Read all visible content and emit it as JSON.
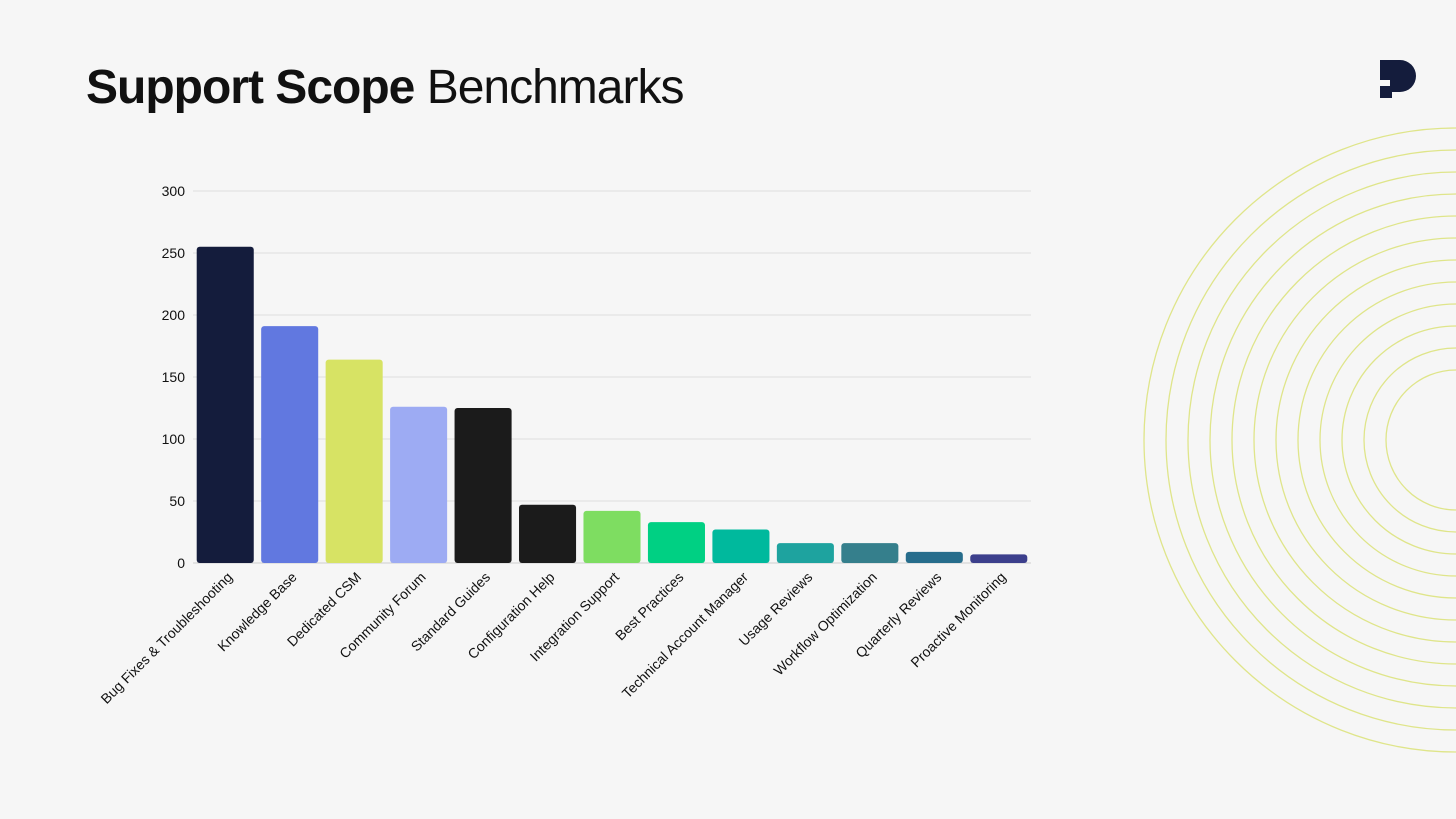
{
  "header": {
    "title_bold": "Support Scope",
    "title_light": "Benchmarks"
  },
  "logo": {
    "icon": "brand-logo-icon",
    "color": "#141c3c"
  },
  "decoration": {
    "icon": "concentric-rings-icon",
    "color": "#dfe58a"
  },
  "chart_data": {
    "type": "bar",
    "title": "",
    "xlabel": "",
    "ylabel": "",
    "ylim": [
      0,
      300
    ],
    "yticks": [
      0,
      50,
      100,
      150,
      200,
      250,
      300
    ],
    "grid": true,
    "categories": [
      "Bug Fixes & Troubleshooting",
      "Knowledge Base",
      "Dedicated CSM",
      "Community Forum",
      "Standard Guides",
      "Configuration Help",
      "Integration Support",
      "Best Practices",
      "Technical Account Manager",
      "Usage Reviews",
      "Workflow Optimization",
      "Quarterly Reviews",
      "Proactive Monitoring"
    ],
    "values": [
      255,
      191,
      164,
      126,
      125,
      47,
      42,
      33,
      27,
      16,
      16,
      9,
      7
    ],
    "colors": [
      "#141c3c",
      "#6178e0",
      "#d7e364",
      "#9dabf3",
      "#1b1b1b",
      "#1b1b1b",
      "#7edd61",
      "#00d083",
      "#00b99d",
      "#1ea39f",
      "#357f8c",
      "#276d8c",
      "#3c3f8c"
    ]
  }
}
